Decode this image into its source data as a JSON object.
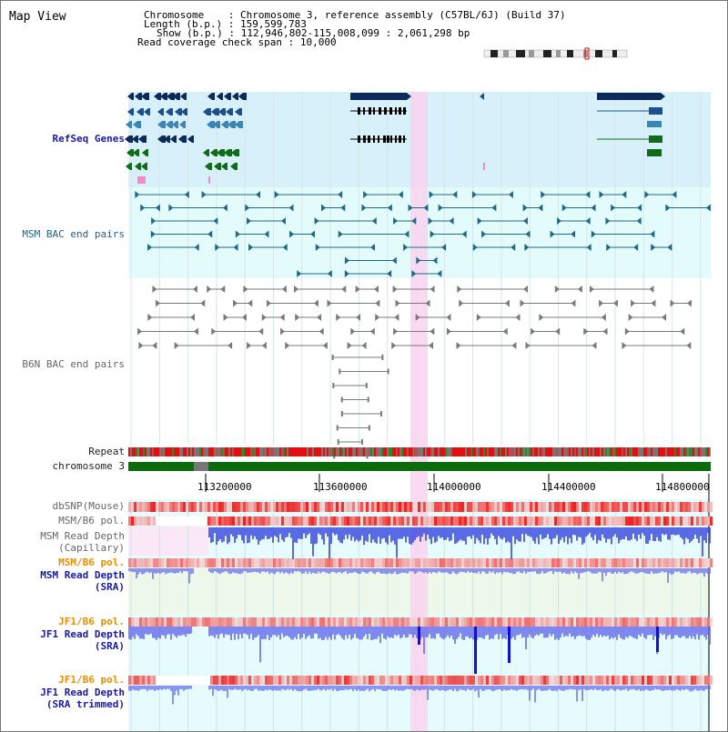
{
  "title": "Map View",
  "header": {
    "chromosome_key": "Chromosome",
    "chromosome_val": "Chromosome 3, reference assembly (C57BL/6J) (Build 37)",
    "length_key": "Length (b.p.)",
    "length_val": "159,599,783",
    "show_key": "Show (b.p.)",
    "show_val": "112,946,802-115,008,099 : 2,061,298 bp",
    "coverage_key": "Read coverage check span",
    "coverage_val": "10,000"
  },
  "tracks": {
    "refseq": "RefSeq Genes",
    "msm_bac": "MSM BAC end pairs",
    "b6n_bac": "B6N BAC end pairs",
    "repeat": "Repeat",
    "chromosome": "chromosome 3",
    "dbsnp": "dbSNP(Mouse)",
    "msm_pol1": "MSM/B6 pol.",
    "msm_depth_cap_1": "MSM Read Depth",
    "msm_depth_cap_2": "(Capillary)",
    "msm_pol2": "MSM/B6 pol.",
    "msm_depth_sra_1": "MSM Read Depth",
    "msm_depth_sra_2": "(SRA)",
    "jf1_pol1": "JF1/B6 pol.",
    "jf1_depth_sra_1": "JF1 Read Depth",
    "jf1_depth_sra_2": "(SRA)",
    "jf1_pol2": "JF1/B6 pol.",
    "jf1_depth_trim_1": "JF1 Read Depth",
    "jf1_depth_trim_2": "(SRA trimmed)"
  },
  "axis": {
    "ticks": [
      "113200000",
      "113600000",
      "114000000",
      "114400000",
      "114800000"
    ]
  },
  "colors": {
    "refseq_bg": "#d8f0fa",
    "msm_bg": "#e4fbfb",
    "highlight": "#f9d4ef",
    "gene_dark": "#0b2b5a",
    "gene_green": "#116b1a",
    "bac_teal": "#1e6a8a",
    "bac_gray": "#7a7a7a",
    "chrom_green": "#0c6b0c",
    "depth_blue": "#3030e0"
  }
}
